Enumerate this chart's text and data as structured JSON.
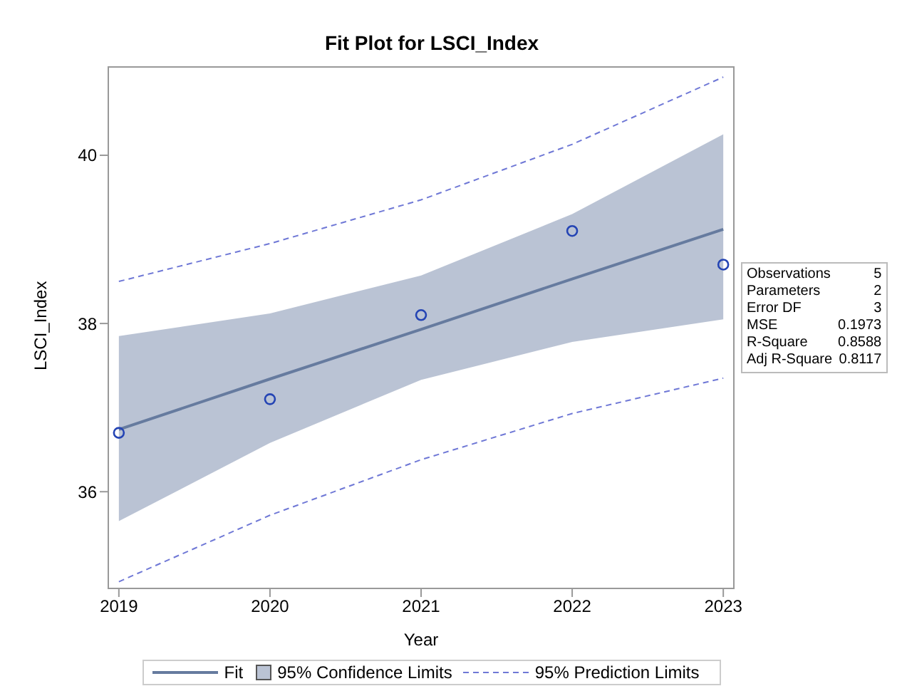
{
  "chart_data": {
    "type": "line",
    "title": "Fit Plot for LSCI_Index",
    "xlabel": "Year",
    "ylabel": "LSCI_Index",
    "x": [
      2019,
      2020,
      2021,
      2022,
      2023
    ],
    "series": [
      {
        "name": "Fit",
        "type": "line",
        "color": "#667b9f",
        "values": [
          36.74,
          37.34,
          37.93,
          38.53,
          39.12
        ],
        "lower": [
          35.65,
          36.58,
          37.33,
          37.78,
          38.05
        ],
        "upper": [
          37.85,
          38.12,
          38.57,
          39.3,
          40.25
        ]
      },
      {
        "name": "95% Prediction Limits",
        "type": "line",
        "line_style": "dashed",
        "color": "#6f78d6",
        "values": [
          38.5,
          38.95,
          39.47,
          40.13,
          40.93
        ]
      },
      {
        "type": "line",
        "line_style": "dashed",
        "color": "#6f78d6",
        "values": [
          34.93,
          35.72,
          36.38,
          36.93,
          37.35
        ]
      },
      {
        "type": "scatter",
        "marker": "circle",
        "color": "#2444b4",
        "values": [
          36.7,
          37.1,
          38.1,
          39.1,
          38.7
        ]
      }
    ],
    "xlim": [
      2018.93,
      2023.07
    ],
    "xticks": [
      2019,
      2020,
      2021,
      2022,
      2023
    ],
    "ylim": [
      34.85,
      41.05
    ],
    "yticks": [
      36,
      38,
      40
    ],
    "legend": "bottom",
    "annotations": [
      "95% Confidence Limits",
      "Observations 5",
      "Parameters 2",
      "Error DF 3",
      "MSE 0.1973",
      "R-Square 0.8588",
      "Adj R-Square 0.8117"
    ]
  }
}
